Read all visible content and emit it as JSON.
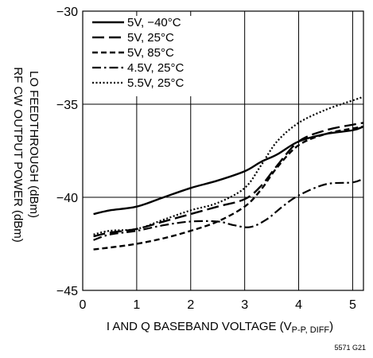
{
  "chart_data": {
    "type": "line",
    "title": "",
    "figure_code": "5571 G21",
    "xlabel_main": "I AND Q BASEBAND VOLTAGE (V",
    "xlabel_sub": "P-P, DIFF",
    "xlabel_close": ")",
    "ylabel_outer": "RF CW OUTPUT POWER (dBm)",
    "ylabel_inner": "LO FEEDTHROUGH (dBm)",
    "xlim": [
      0,
      5.2
    ],
    "ylim": [
      -45,
      -30
    ],
    "x_ticks": [
      "0",
      "1",
      "2",
      "3",
      "4",
      "5"
    ],
    "y_ticks": [
      "−45",
      "−40",
      "−35",
      "−30"
    ],
    "grid": true,
    "legend_position": "top-left",
    "series": [
      {
        "name": "5V, −40°C",
        "style": "solid",
        "x": [
          0.2,
          0.5,
          1.0,
          1.5,
          2.0,
          2.5,
          3.0,
          3.3,
          3.6,
          4.0,
          4.5,
          5.0,
          5.2
        ],
        "y": [
          -40.9,
          -40.7,
          -40.5,
          -40.0,
          -39.5,
          -39.1,
          -38.6,
          -38.1,
          -37.7,
          -37.0,
          -36.6,
          -36.4,
          -36.2
        ]
      },
      {
        "name": "5V, 25°C",
        "style": "long-dash",
        "x": [
          0.2,
          0.5,
          1.0,
          1.5,
          2.0,
          2.5,
          3.0,
          3.3,
          3.6,
          4.0,
          4.5,
          5.0,
          5.2
        ],
        "y": [
          -42.1,
          -41.9,
          -41.7,
          -41.3,
          -40.9,
          -40.5,
          -40.1,
          -39.4,
          -38.3,
          -37.0,
          -36.4,
          -36.1,
          -36.0
        ]
      },
      {
        "name": "5V, 85°C",
        "style": "short-dash",
        "x": [
          0.2,
          0.5,
          1.0,
          1.5,
          2.0,
          2.5,
          3.0,
          3.3,
          3.6,
          4.0,
          4.5,
          5.0,
          5.2
        ],
        "y": [
          -42.8,
          -42.7,
          -42.5,
          -42.2,
          -41.8,
          -41.3,
          -40.5,
          -39.6,
          -38.4,
          -37.2,
          -36.6,
          -36.3,
          -36.2
        ]
      },
      {
        "name": "4.5V, 25°C",
        "style": "dash-dot",
        "x": [
          0.2,
          0.5,
          1.0,
          1.5,
          2.0,
          2.5,
          2.8,
          3.1,
          3.4,
          3.7,
          4.0,
          4.5,
          5.0,
          5.2
        ],
        "y": [
          -42.3,
          -42.0,
          -41.8,
          -41.5,
          -41.3,
          -41.3,
          -41.5,
          -41.6,
          -41.2,
          -40.5,
          -39.9,
          -39.3,
          -39.2,
          -39.0
        ]
      },
      {
        "name": "5.5V, 25°C",
        "style": "dotted",
        "x": [
          0.2,
          0.5,
          1.0,
          1.5,
          2.0,
          2.5,
          3.0,
          3.3,
          3.6,
          4.0,
          4.5,
          5.0,
          5.2
        ],
        "y": [
          -42.0,
          -41.8,
          -41.7,
          -41.2,
          -40.7,
          -40.3,
          -39.5,
          -38.3,
          -37.0,
          -36.0,
          -35.3,
          -34.8,
          -34.6
        ]
      }
    ]
  }
}
